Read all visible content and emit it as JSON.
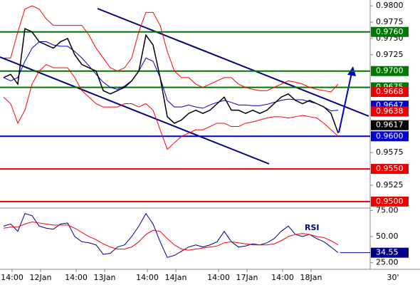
{
  "chart_data": [
    {
      "type": "line",
      "categories": [
        null,
        null,
        "14:00",
        null,
        null,
        null,
        "12Jan",
        null,
        null,
        null,
        null,
        "14:00",
        null,
        null,
        null,
        "13Jan",
        null,
        null,
        null,
        null,
        null,
        "14:00",
        null,
        null,
        null,
        "14Jan",
        null,
        null,
        null,
        null,
        null,
        "14:00",
        null,
        null,
        null,
        "17Jan",
        null,
        null,
        null,
        null,
        "14:00",
        null,
        null,
        null,
        "18Jan",
        null,
        null,
        null
      ],
      "timeframe": "30'",
      "series": [
        {
          "color": "#ff0000",
          "values": [
            0.972,
            0.972,
            0.976,
            0.9795,
            0.98,
            0.9795,
            0.978,
            0.977,
            0.977,
            0.977,
            0.977,
            0.977,
            0.9755,
            0.9735,
            0.972,
            0.9705,
            0.97,
            0.9705,
            0.972,
            0.976,
            0.979,
            0.979,
            0.977,
            0.973,
            0.97,
            0.969,
            0.969,
            0.968,
            0.9675,
            0.968,
            0.9685,
            0.969,
            0.969,
            0.968,
            0.9675,
            0.9672,
            0.967,
            0.967,
            0.9675,
            0.968,
            0.9685,
            0.9683,
            0.968,
            0.9675,
            0.9672,
            0.967,
            0.9668,
            0.968
          ]
        },
        {
          "color": "#ff0000",
          "values": [
            0.966,
            0.965,
            0.962,
            0.964,
            0.968,
            0.97,
            0.971,
            0.9705,
            0.9705,
            0.9705,
            0.969,
            0.967,
            0.966,
            0.965,
            0.9645,
            0.9645,
            0.9645,
            0.965,
            0.965,
            0.9645,
            0.965,
            0.964,
            0.961,
            0.958,
            0.959,
            0.96,
            0.9605,
            0.961,
            0.961,
            0.9615,
            0.962,
            0.962,
            0.9615,
            0.9615,
            0.962,
            0.9622,
            0.9625,
            0.9628,
            0.963,
            0.963,
            0.9628,
            0.963,
            0.9632,
            0.963,
            0.9628,
            0.962,
            0.961,
            0.96
          ]
        },
        {
          "color": "#0000cc",
          "values": [
            0.969,
            0.9685,
            0.969,
            0.9715,
            0.9735,
            0.9745,
            0.9745,
            0.974,
            0.9738,
            0.9738,
            0.973,
            0.972,
            0.9708,
            0.9695,
            0.9683,
            0.9675,
            0.9672,
            0.9677,
            0.9685,
            0.97,
            0.972,
            0.9715,
            0.969,
            0.9655,
            0.9645,
            0.9645,
            0.9648,
            0.9645,
            0.9643,
            0.9648,
            0.9652,
            0.9655,
            0.9652,
            0.9648,
            0.9648,
            0.9647,
            0.9647,
            0.9649,
            0.9652,
            0.9655,
            0.9657,
            0.9656,
            0.9656,
            0.9653,
            0.965,
            0.9645,
            0.9639,
            0.964
          ]
        },
        {
          "color": "#000000",
          "values": [
            0.969,
            0.9695,
            0.968,
            0.9765,
            0.976,
            0.9745,
            0.974,
            0.9735,
            0.9745,
            0.975,
            0.9725,
            0.971,
            0.9705,
            0.97,
            0.967,
            0.9665,
            0.967,
            0.9675,
            0.9685,
            0.97,
            0.9755,
            0.974,
            0.969,
            0.963,
            0.962,
            0.9625,
            0.9635,
            0.964,
            0.9635,
            0.964,
            0.965,
            0.966,
            0.964,
            0.964,
            0.9635,
            0.964,
            0.9635,
            0.964,
            0.965,
            0.966,
            0.9665,
            0.9655,
            0.965,
            0.9655,
            0.965,
            0.9645,
            0.9635,
            0.9605
          ]
        }
      ],
      "ylim": [
        0.949,
        0.981
      ],
      "yticks": [
        {
          "value": 0.98,
          "label": "0.9800"
        },
        {
          "value": 0.9775,
          "label": "0.9775"
        },
        {
          "value": 0.975,
          "label": "0.9750"
        },
        {
          "value": 0.9725,
          "label": "0.9725"
        },
        {
          "value": 0.9575,
          "label": "0.9575"
        },
        {
          "value": 0.9525,
          "label": "0.9525"
        }
      ],
      "levels": [
        {
          "value": 0.976,
          "label": "0.9760",
          "color": "#007700",
          "line": true
        },
        {
          "value": 0.97,
          "label": "0.9700",
          "color": "#007700",
          "line": true
        },
        {
          "value": 0.9675,
          "label": "0.9675",
          "color": "#007700",
          "line": true
        },
        {
          "value": 0.9668,
          "label": "0.9668",
          "color": "#ee0000",
          "line": false
        },
        {
          "value": 0.9647,
          "label": "0.9647",
          "color": "#0000cc",
          "line": false
        },
        {
          "value": 0.9638,
          "label": "0.9638",
          "color": "#ee0000",
          "line": false
        },
        {
          "value": 0.9617,
          "label": "0.9617",
          "color": "#000000",
          "line": false
        },
        {
          "value": 0.96,
          "label": "0.9600",
          "color": "#0000cc",
          "line": true
        },
        {
          "value": 0.955,
          "label": "0.9550",
          "color": "#ee0000",
          "line": true
        },
        {
          "value": 0.95,
          "label": "0.9500",
          "color": "#ee0000",
          "line": true
        }
      ]
    },
    {
      "type": "line",
      "title": "RSI",
      "series": [
        {
          "color": "#000088",
          "values": [
            60,
            62,
            55,
            72,
            70,
            60,
            58,
            57,
            62,
            63,
            50,
            45,
            44,
            42,
            33,
            34,
            40,
            42,
            50,
            60,
            72,
            62,
            45,
            30,
            32,
            36,
            40,
            42,
            40,
            42,
            45,
            55,
            45,
            40,
            41,
            43,
            42,
            44,
            48,
            55,
            60,
            52,
            50,
            52,
            48,
            45,
            40,
            34.55
          ]
        },
        {
          "color": "#ff0000",
          "values": [
            58,
            59,
            59,
            62,
            64,
            63,
            62,
            61,
            61,
            61,
            58,
            54,
            50,
            47,
            43,
            40,
            38,
            38,
            40,
            45,
            52,
            56,
            55,
            48,
            42,
            38,
            37,
            38,
            39,
            40,
            41,
            44,
            45,
            44,
            43,
            42,
            42,
            42,
            43,
            46,
            50,
            52,
            53,
            52,
            50,
            49,
            46,
            42
          ]
        }
      ],
      "ylim": [
        20,
        80
      ],
      "yticks": [
        {
          "value": 75,
          "label": "75.00"
        },
        {
          "value": 50,
          "label": "50.00"
        },
        {
          "value": 25,
          "label": "25.00"
        }
      ],
      "current": {
        "value": 34.55,
        "label": "34.55",
        "color": "#000088"
      }
    }
  ]
}
